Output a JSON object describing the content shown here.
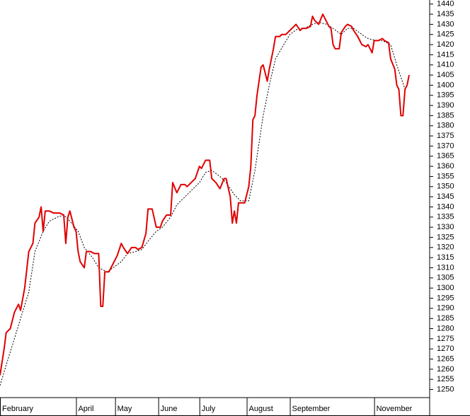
{
  "chart_data": {
    "type": "line",
    "xlim": [
      0,
      199
    ],
    "xticks": [
      {
        "value": 0,
        "label": "February"
      },
      {
        "value": 37,
        "label": "April"
      },
      {
        "value": 56,
        "label": "May"
      },
      {
        "value": 77,
        "label": "June"
      },
      {
        "value": 97,
        "label": "July"
      },
      {
        "value": 120,
        "label": "August"
      },
      {
        "value": 141,
        "label": "September"
      },
      {
        "value": 182,
        "label": "November"
      }
    ],
    "ylim": [
      1246,
      1442
    ],
    "yticks": [
      1250,
      1255,
      1260,
      1265,
      1270,
      1275,
      1280,
      1285,
      1290,
      1295,
      1300,
      1305,
      1310,
      1315,
      1320,
      1325,
      1330,
      1335,
      1340,
      1345,
      1350,
      1355,
      1360,
      1365,
      1370,
      1375,
      1380,
      1385,
      1390,
      1395,
      1400,
      1405,
      1410,
      1415,
      1420,
      1425,
      1430,
      1435,
      1440
    ],
    "series": [
      {
        "color": "#e00000",
        "style": "solid",
        "x": [
          0,
          2,
          3,
          5,
          7,
          9,
          10,
          12,
          14,
          16,
          17,
          19,
          20,
          21,
          22,
          24,
          26,
          28,
          29,
          31,
          32,
          33,
          34,
          36,
          37,
          38,
          39,
          41,
          42,
          44,
          46,
          48,
          49,
          50,
          51,
          52,
          53,
          55,
          57,
          59,
          60,
          62,
          64,
          66,
          67,
          69,
          71,
          72,
          74,
          76,
          78,
          79,
          81,
          83,
          84,
          86,
          88,
          90,
          91,
          93,
          95,
          97,
          98,
          100,
          102,
          103,
          105,
          107,
          109,
          110,
          112,
          113,
          114,
          115,
          116,
          117,
          119,
          121,
          122,
          123,
          124,
          125,
          127,
          128,
          130,
          131,
          133,
          134,
          136,
          137,
          139,
          141,
          142,
          144,
          146,
          147,
          149,
          151,
          152,
          153,
          155,
          157,
          158,
          160,
          161,
          162,
          163,
          165,
          166,
          168,
          169,
          171,
          172,
          174,
          176,
          178,
          179,
          181,
          182,
          184,
          186,
          187,
          189,
          190,
          192,
          193,
          194,
          195,
          196,
          197,
          198,
          199
        ],
        "values": [
          1257,
          1270,
          1278,
          1280,
          1288,
          1292,
          1289,
          1300,
          1318,
          1322,
          1332,
          1335,
          1340,
          1328,
          1338,
          1338,
          1337,
          1337,
          1337,
          1336,
          1322,
          1335,
          1338,
          1330,
          1328,
          1318,
          1313,
          1310,
          1318,
          1318,
          1317,
          1317,
          1291,
          1291,
          1308,
          1308,
          1308,
          1312,
          1316,
          1322,
          1320,
          1317,
          1320,
          1320,
          1319,
          1320,
          1327,
          1339,
          1339,
          1330,
          1330,
          1333,
          1336,
          1336,
          1352,
          1347,
          1351,
          1351,
          1350,
          1352,
          1354,
          1360,
          1359,
          1363,
          1363,
          1354,
          1352,
          1349,
          1354,
          1354,
          1345,
          1332,
          1338,
          1332,
          1342,
          1342,
          1342,
          1350,
          1360,
          1383,
          1385,
          1395,
          1409,
          1410,
          1402,
          1408,
          1418,
          1424,
          1424,
          1425,
          1425,
          1427,
          1428,
          1430,
          1427,
          1428,
          1428,
          1429,
          1434,
          1432,
          1430,
          1435,
          1433,
          1429,
          1428,
          1420,
          1418,
          1418,
          1426,
          1429,
          1430,
          1429,
          1427,
          1424,
          1420,
          1419,
          1420,
          1416,
          1422,
          1422,
          1423,
          1422,
          1421,
          1413,
          1408,
          1400,
          1398,
          1385,
          1385,
          1398,
          1400,
          1405
        ]
      },
      {
        "color": "#000000",
        "style": "dashed",
        "x": [
          0,
          3,
          7,
          10,
          14,
          17,
          21,
          24,
          28,
          31,
          34,
          38,
          41,
          45,
          48,
          52,
          55,
          59,
          62,
          66,
          69,
          72,
          76,
          79,
          83,
          86,
          90,
          93,
          97,
          100,
          103,
          107,
          110,
          114,
          117,
          121,
          124,
          128,
          131,
          134,
          138,
          141,
          145,
          148,
          152,
          155,
          159,
          162,
          166,
          169,
          172,
          176,
          179,
          183,
          186,
          190,
          193,
          197,
          198
        ],
        "values": [
          1252,
          1262,
          1275,
          1285,
          1298,
          1318,
          1328,
          1333,
          1335,
          1336,
          1333,
          1328,
          1320,
          1315,
          1310,
          1308,
          1310,
          1313,
          1317,
          1318,
          1319,
          1323,
          1328,
          1330,
          1335,
          1341,
          1345,
          1348,
          1352,
          1357,
          1358,
          1355,
          1352,
          1346,
          1343,
          1343,
          1358,
          1385,
          1400,
          1413,
          1420,
          1425,
          1428,
          1428,
          1430,
          1431,
          1430,
          1428,
          1425,
          1428,
          1428,
          1425,
          1423,
          1422,
          1422,
          1420,
          1410,
          1398,
          1400
        ]
      }
    ]
  }
}
